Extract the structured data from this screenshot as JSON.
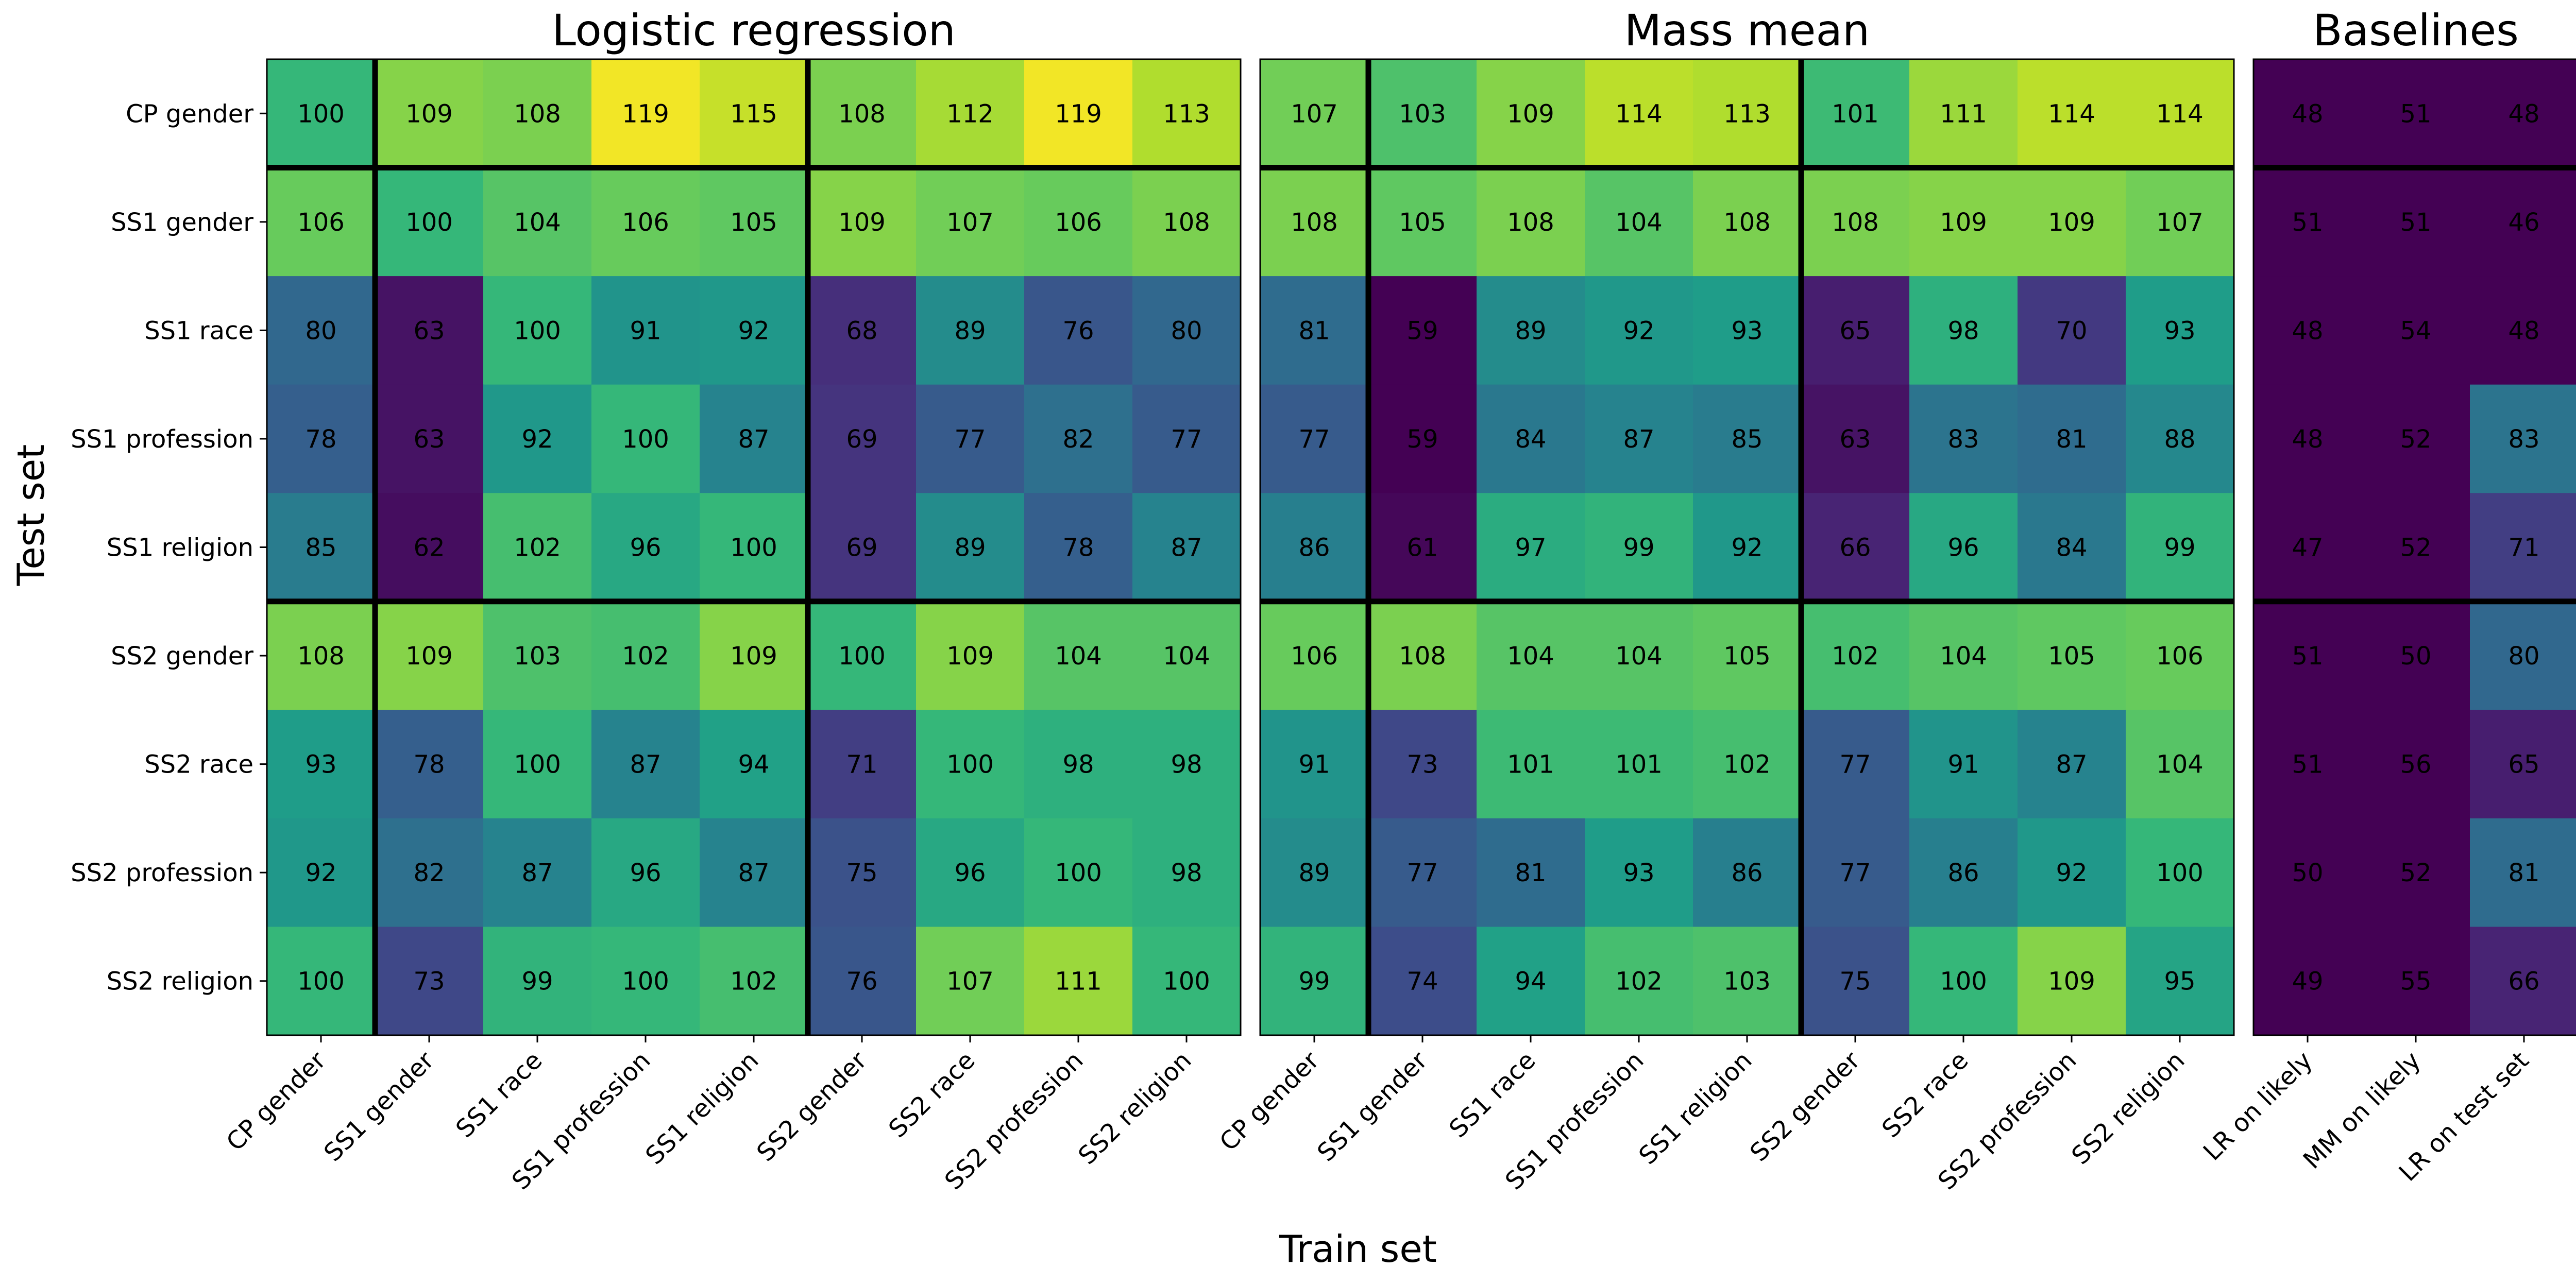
{
  "chart_data": {
    "type": "heatmap",
    "ylabel": "Test set",
    "xlabel": "Train set",
    "rows": [
      "CP gender",
      "SS1 gender",
      "SS1 race",
      "SS1 profession",
      "SS1 religion",
      "SS2 gender",
      "SS2 race",
      "SS2 profession",
      "SS2 religion"
    ],
    "colorbar": {
      "colormap": "viridis",
      "range": [
        0.6,
        1.2
      ],
      "ticks": [
        "0.6",
        "0.7",
        "0.8",
        "0.9",
        "1.0",
        "1.1",
        "1.2"
      ]
    },
    "panels": [
      {
        "title": "Logistic regression",
        "columns": [
          "CP gender",
          "SS1 gender",
          "SS1 race",
          "SS1 profession",
          "SS1 religion",
          "SS2 gender",
          "SS2 race",
          "SS2 profession",
          "SS2 religion"
        ],
        "values": [
          [
            100,
            109,
            108,
            119,
            115,
            108,
            112,
            119,
            113
          ],
          [
            106,
            100,
            104,
            106,
            105,
            109,
            107,
            106,
            108
          ],
          [
            80,
            63,
            100,
            91,
            92,
            68,
            89,
            76,
            80
          ],
          [
            78,
            63,
            92,
            100,
            87,
            69,
            77,
            82,
            77
          ],
          [
            85,
            62,
            102,
            96,
            100,
            69,
            89,
            78,
            87
          ],
          [
            108,
            109,
            103,
            102,
            109,
            100,
            109,
            104,
            104
          ],
          [
            93,
            78,
            100,
            87,
            94,
            71,
            100,
            98,
            98
          ],
          [
            92,
            82,
            87,
            96,
            87,
            75,
            96,
            100,
            98
          ],
          [
            100,
            73,
            99,
            100,
            102,
            76,
            107,
            111,
            100
          ]
        ]
      },
      {
        "title": "Mass mean",
        "columns": [
          "CP gender",
          "SS1 gender",
          "SS1 race",
          "SS1 profession",
          "SS1 religion",
          "SS2 gender",
          "SS2 race",
          "SS2 profession",
          "SS2 religion"
        ],
        "values": [
          [
            107,
            103,
            109,
            114,
            113,
            101,
            111,
            114,
            114
          ],
          [
            108,
            105,
            108,
            104,
            108,
            108,
            109,
            109,
            107
          ],
          [
            81,
            59,
            89,
            92,
            93,
            65,
            98,
            70,
            93
          ],
          [
            77,
            59,
            84,
            87,
            85,
            63,
            83,
            81,
            88
          ],
          [
            86,
            61,
            97,
            99,
            92,
            66,
            96,
            84,
            99
          ],
          [
            106,
            108,
            104,
            104,
            105,
            102,
            104,
            105,
            106
          ],
          [
            91,
            73,
            101,
            101,
            102,
            77,
            91,
            87,
            104
          ],
          [
            89,
            77,
            81,
            93,
            86,
            77,
            86,
            92,
            100
          ],
          [
            99,
            74,
            94,
            102,
            103,
            75,
            100,
            109,
            95
          ]
        ]
      },
      {
        "title": "Baselines",
        "columns": [
          "LR on likely",
          "MM on likely",
          "LR on test set"
        ],
        "values": [
          [
            48,
            51,
            48
          ],
          [
            51,
            51,
            46
          ],
          [
            48,
            54,
            48
          ],
          [
            48,
            52,
            83
          ],
          [
            47,
            52,
            71
          ],
          [
            51,
            50,
            80
          ],
          [
            51,
            56,
            65
          ],
          [
            50,
            52,
            81
          ],
          [
            49,
            55,
            66
          ]
        ]
      }
    ]
  }
}
